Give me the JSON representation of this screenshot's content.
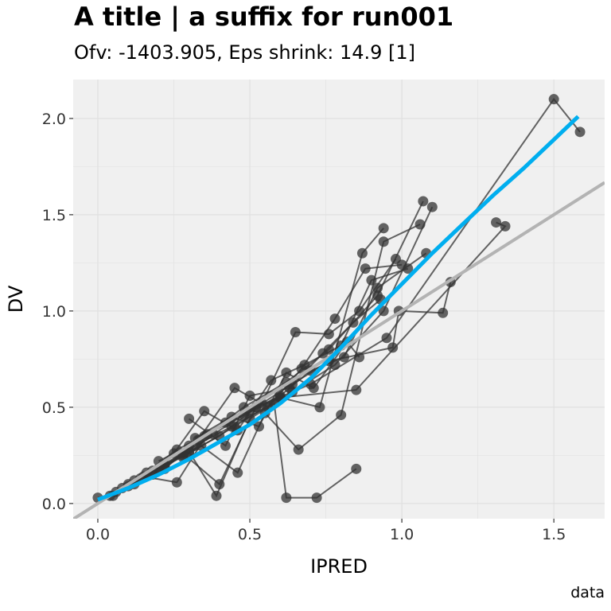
{
  "chart_data": {
    "type": "scatter",
    "title": "A title | a suffix for run001",
    "subtitle": "Ofv: -1403.905, Eps shrink: 14.9 [1]",
    "caption": "data",
    "xlabel": "IPRED",
    "ylabel": "DV",
    "xlim": [
      -0.081,
      1.667
    ],
    "ylim": [
      -0.079,
      2.202
    ],
    "xticks": [
      {
        "v": 0,
        "label": "0.0"
      },
      {
        "v": 0.5,
        "label": "0.5"
      },
      {
        "v": 1,
        "label": "1.0"
      },
      {
        "v": 1.5,
        "label": "1.5"
      }
    ],
    "yticks": [
      {
        "v": 0,
        "label": "0.0"
      },
      {
        "v": 0.5,
        "label": "0.5"
      },
      {
        "v": 1,
        "label": "1.0"
      },
      {
        "v": 1.5,
        "label": "1.5"
      },
      {
        "v": 2,
        "label": "2.0"
      }
    ],
    "grid": true,
    "colors": {
      "panel": "#f0f0f0",
      "grid": "#e0e0e0",
      "points": "#333333",
      "smooth": "#00aeef",
      "identity": "#b3b3b3"
    },
    "identity_line": {
      "slope": 1,
      "intercept": 0
    },
    "smooth": {
      "x": [
        0,
        0.1,
        0.2,
        0.3,
        0.4,
        0.5,
        0.6,
        0.7,
        0.8,
        0.9,
        1.0,
        1.1,
        1.2,
        1.3,
        1.4,
        1.5,
        1.58
      ],
      "y": [
        0.02,
        0.08,
        0.15,
        0.23,
        0.32,
        0.41,
        0.52,
        0.65,
        0.81,
        0.98,
        1.14,
        1.3,
        1.45,
        1.6,
        1.74,
        1.89,
        2.01
      ]
    },
    "individuals": [
      {
        "x": [
          0.0,
          0.05,
          0.12,
          0.2,
          0.3,
          0.45,
          0.6,
          0.85,
          1.34,
          1.31
        ],
        "y": [
          0.03,
          0.04,
          0.1,
          0.18,
          0.26,
          0.4,
          0.55,
          0.59,
          1.44,
          1.46
        ]
      },
      {
        "x": [
          0.04,
          0.1,
          0.18,
          0.28,
          0.4,
          0.52,
          0.7,
          0.95,
          1.5,
          1.586
        ],
        "y": [
          0.04,
          0.09,
          0.15,
          0.25,
          0.35,
          0.5,
          0.62,
          0.86,
          2.1,
          1.93
        ]
      },
      {
        "x": [
          0.06,
          0.14,
          0.22,
          0.32,
          0.44,
          0.58,
          0.62,
          0.72,
          0.85
        ],
        "y": [
          0.06,
          0.13,
          0.2,
          0.3,
          0.4,
          0.52,
          0.03,
          0.03,
          0.18
        ]
      },
      {
        "x": [
          0.08,
          0.16,
          0.26,
          0.35,
          0.48,
          0.62,
          0.76,
          0.92,
          1.07
        ],
        "y": [
          0.08,
          0.16,
          0.28,
          0.35,
          0.5,
          0.63,
          0.8,
          1.08,
          1.57
        ]
      },
      {
        "x": [
          0.1,
          0.2,
          0.3,
          0.39,
          0.5,
          0.64,
          0.78,
          0.94,
          1.1
        ],
        "y": [
          0.1,
          0.18,
          0.27,
          0.04,
          0.44,
          0.58,
          0.72,
          1.0,
          1.54
        ]
      },
      {
        "x": [
          0.12,
          0.22,
          0.34,
          0.46,
          0.55,
          0.66,
          0.8,
          0.94,
          1.06
        ],
        "y": [
          0.12,
          0.2,
          0.3,
          0.16,
          0.47,
          0.28,
          0.46,
          1.36,
          1.45
        ]
      },
      {
        "x": [
          0.15,
          0.26,
          0.36,
          0.48,
          0.6,
          0.73,
          0.87,
          0.94
        ],
        "y": [
          0.14,
          0.11,
          0.36,
          0.46,
          0.55,
          0.5,
          1.3,
          1.43
        ]
      },
      {
        "x": [
          0.18,
          0.28,
          0.4,
          0.52,
          0.64,
          0.76,
          0.97,
          0.99,
          1.135,
          1.16
        ],
        "y": [
          0.17,
          0.26,
          0.1,
          0.5,
          0.62,
          0.74,
          0.81,
          1.0,
          0.99,
          1.15
        ]
      },
      {
        "x": [
          0.2,
          0.3,
          0.42,
          0.54,
          0.65,
          0.76,
          0.86,
          0.98
        ],
        "y": [
          0.22,
          0.3,
          0.42,
          0.52,
          0.89,
          0.88,
          1.0,
          1.27
        ]
      },
      {
        "x": [
          0.22,
          0.33,
          0.45,
          0.56,
          0.67,
          0.78,
          0.88,
          1.0
        ],
        "y": [
          0.18,
          0.33,
          0.6,
          0.5,
          0.7,
          0.96,
          1.22,
          1.24
        ]
      },
      {
        "x": [
          0.25,
          0.35,
          0.46,
          0.57,
          0.68,
          0.8,
          0.9,
          1.02
        ],
        "y": [
          0.26,
          0.48,
          0.38,
          0.64,
          0.72,
          0.82,
          1.16,
          1.22
        ]
      },
      {
        "x": [
          0.28,
          0.38,
          0.5,
          0.6,
          0.7,
          0.81,
          0.92,
          1.08
        ],
        "y": [
          0.24,
          0.36,
          0.48,
          0.56,
          0.69,
          0.76,
          1.12,
          1.3
        ]
      },
      {
        "x": [
          0.3,
          0.42,
          0.5,
          0.63,
          0.74,
          0.84,
          0.93
        ],
        "y": [
          0.44,
          0.3,
          0.56,
          0.6,
          0.78,
          0.94,
          1.06
        ]
      },
      {
        "x": [
          0.32,
          0.44,
          0.53,
          0.62,
          0.71,
          0.82,
          0.86
        ],
        "y": [
          0.34,
          0.45,
          0.4,
          0.68,
          0.6,
          0.84,
          0.76
        ]
      }
    ]
  }
}
